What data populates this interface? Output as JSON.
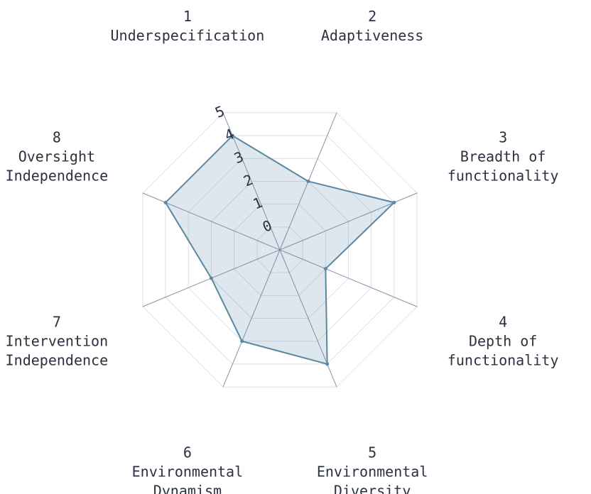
{
  "chart_data": {
    "type": "radar",
    "categories": [
      [
        "1",
        "Underspecification"
      ],
      [
        "2",
        "Adaptiveness"
      ],
      [
        "3",
        "Breadth of",
        "functionality"
      ],
      [
        "4",
        "Depth of",
        "functionality"
      ],
      [
        "5",
        "Environmental",
        "Diversity"
      ],
      [
        "6",
        "Environmental",
        "Dynamism"
      ],
      [
        "7",
        "Intervention",
        "Independence"
      ],
      [
        "8",
        "Oversight",
        "Independence"
      ]
    ],
    "series": [
      {
        "color": "#5a87a3",
        "values": [
          4,
          2,
          4,
          1,
          4,
          3,
          2,
          4
        ]
      }
    ],
    "ylim": [
      -1,
      5
    ],
    "yticks": [
      0,
      1,
      2,
      3,
      4,
      5
    ],
    "grid": true
  }
}
